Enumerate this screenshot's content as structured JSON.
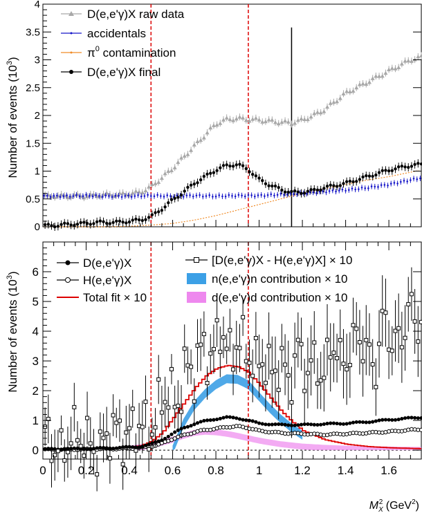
{
  "chart_data": [
    {
      "type": "scatter",
      "ylabel": "Number of events (10",
      "ylabel_exp": "3",
      "ylabel_close": ")",
      "ylim": [
        0,
        4
      ],
      "xlim": [
        0,
        1.75
      ],
      "yticks": [
        "0",
        "0.5",
        "1",
        "1.5",
        "2",
        "2.5",
        "3",
        "3.5",
        "4"
      ],
      "ytick_values": [
        0,
        0.5,
        1,
        1.5,
        2,
        2.5,
        3,
        3.5,
        4
      ],
      "vertical_lines": [
        {
          "x": 0.5,
          "style": "dashed",
          "color": "#dd0000"
        },
        {
          "x": 0.95,
          "style": "dashed",
          "color": "#dd0000"
        },
        {
          "x": 1.15,
          "style": "solid",
          "color": "#000000"
        }
      ],
      "legend": [
        {
          "label": "D(e,e'γ)X raw data",
          "color": "#a8a8a8",
          "marker": "triangle"
        },
        {
          "label": "accidentals",
          "color": "#1515c8",
          "marker": "dot"
        },
        {
          "label": "π",
          "sup": "0",
          "label_rest": " contamination",
          "color": "#f08c28",
          "marker": "dot"
        },
        {
          "label": "D(e,e'γ)X final",
          "color": "#000000",
          "marker": "circle"
        }
      ],
      "series": [
        {
          "name": "D(e,e'γ)X raw data",
          "color": "#a8a8a8",
          "x": [
            0.0,
            0.05,
            0.1,
            0.15,
            0.2,
            0.25,
            0.3,
            0.35,
            0.4,
            0.45,
            0.5,
            0.55,
            0.6,
            0.65,
            0.7,
            0.75,
            0.8,
            0.85,
            0.9,
            0.95,
            1.0,
            1.05,
            1.1,
            1.15,
            1.2,
            1.25,
            1.3,
            1.35,
            1.4,
            1.45,
            1.5,
            1.55,
            1.6,
            1.65,
            1.7,
            1.75
          ],
          "y": [
            0.55,
            0.56,
            0.55,
            0.56,
            0.55,
            0.57,
            0.58,
            0.58,
            0.6,
            0.62,
            0.72,
            0.88,
            1.05,
            1.25,
            1.45,
            1.65,
            1.85,
            1.93,
            1.95,
            1.93,
            1.92,
            1.9,
            1.88,
            1.87,
            1.92,
            2.0,
            2.1,
            2.25,
            2.4,
            2.5,
            2.6,
            2.7,
            2.8,
            2.9,
            3.0,
            3.05
          ]
        },
        {
          "name": "accidentals",
          "color": "#1515c8",
          "x": [
            0.0,
            0.1,
            0.2,
            0.3,
            0.4,
            0.5,
            0.6,
            0.7,
            0.8,
            0.9,
            1.0,
            1.1,
            1.2,
            1.3,
            1.4,
            1.5,
            1.6,
            1.7,
            1.75
          ],
          "y": [
            0.55,
            0.55,
            0.56,
            0.55,
            0.55,
            0.56,
            0.55,
            0.56,
            0.55,
            0.56,
            0.56,
            0.58,
            0.6,
            0.63,
            0.66,
            0.7,
            0.76,
            0.84,
            0.88
          ]
        },
        {
          "name": "π⁰ contamination",
          "color": "#f08c28",
          "x": [
            0.0,
            0.3,
            0.4,
            0.5,
            0.6,
            0.7,
            0.8,
            0.9,
            1.0,
            1.1,
            1.2,
            1.3,
            1.4,
            1.5,
            1.6,
            1.7,
            1.75
          ],
          "y": [
            0.0,
            0.0,
            0.01,
            0.03,
            0.06,
            0.12,
            0.2,
            0.3,
            0.4,
            0.5,
            0.6,
            0.68,
            0.76,
            0.84,
            0.9,
            0.98,
            1.02
          ]
        },
        {
          "name": "D(e,e'γ)X final",
          "color": "#000000",
          "x": [
            0.0,
            0.05,
            0.1,
            0.15,
            0.2,
            0.25,
            0.3,
            0.35,
            0.4,
            0.45,
            0.5,
            0.55,
            0.6,
            0.65,
            0.7,
            0.75,
            0.8,
            0.85,
            0.9,
            0.95,
            1.0,
            1.05,
            1.1,
            1.15,
            1.2,
            1.25,
            1.3,
            1.35,
            1.4,
            1.45,
            1.5,
            1.55,
            1.6,
            1.65,
            1.7,
            1.75
          ],
          "y": [
            0.02,
            0.02,
            0.04,
            0.05,
            0.06,
            0.08,
            0.08,
            0.08,
            0.1,
            0.12,
            0.18,
            0.32,
            0.48,
            0.62,
            0.78,
            0.9,
            1.02,
            1.1,
            1.12,
            1.03,
            0.85,
            0.75,
            0.67,
            0.62,
            0.62,
            0.65,
            0.7,
            0.74,
            0.78,
            0.84,
            0.9,
            0.96,
            1.02,
            1.06,
            1.1,
            1.12
          ]
        }
      ]
    },
    {
      "type": "scatter",
      "ylabel": "Number of events (10",
      "ylabel_exp": "3",
      "ylabel_close": ")",
      "xlabel": "M",
      "xlabel_sub": "X",
      "xlabel_sup": "2",
      "xlabel_unit": " (GeV",
      "xlabel_unit_sup": "2",
      "xlabel_close": ")",
      "ylim": [
        -0.3,
        7.0
      ],
      "xlim": [
        0,
        1.75
      ],
      "xticks": [
        "0",
        "0.2",
        "0.4",
        "0.6",
        "0.8",
        "1",
        "1.2",
        "1.4",
        "1.6"
      ],
      "xtick_values": [
        0,
        0.2,
        0.4,
        0.6,
        0.8,
        1.0,
        1.2,
        1.4,
        1.6
      ],
      "yticks": [
        "0",
        "1",
        "2",
        "3",
        "4",
        "5",
        "6"
      ],
      "ytick_values": [
        0,
        1,
        2,
        3,
        4,
        5,
        6
      ],
      "vertical_lines": [
        {
          "x": 0.5,
          "style": "dashed",
          "color": "#dd0000"
        },
        {
          "x": 0.95,
          "style": "dashed",
          "color": "#dd0000"
        }
      ],
      "legend": [
        {
          "label": "D(e,e'γ)X",
          "color": "#000000",
          "marker": "filled-circle"
        },
        {
          "label": "H(e,e'γ)X",
          "color": "#000000",
          "marker": "open-circle"
        },
        {
          "label": "Total fit × 10",
          "color": "#dd0000",
          "marker": "line"
        },
        {
          "label": "[D(e,e'γ)X - H(e,e'γ)X] × 10",
          "color": "#000000",
          "marker": "open-square"
        },
        {
          "label": "n(e,e'γ)n contribution × 10",
          "color": "#3ca0e6",
          "marker": "band"
        },
        {
          "label": "d(e,e'γ)d contribution × 10",
          "color": "#ee88ee",
          "marker": "band"
        }
      ],
      "series": [
        {
          "name": "D(e,e'γ)X",
          "color": "#000000",
          "x": [
            0.0,
            0.1,
            0.2,
            0.3,
            0.4,
            0.45,
            0.5,
            0.55,
            0.6,
            0.65,
            0.7,
            0.75,
            0.8,
            0.85,
            0.9,
            0.95,
            1.0,
            1.1,
            1.2,
            1.3,
            1.4,
            1.5,
            1.6,
            1.7,
            1.75
          ],
          "y": [
            0.03,
            0.04,
            0.05,
            0.07,
            0.1,
            0.12,
            0.2,
            0.35,
            0.55,
            0.75,
            0.88,
            0.98,
            1.05,
            1.1,
            1.08,
            1.0,
            0.9,
            0.85,
            0.85,
            0.88,
            0.9,
            0.95,
            1.02,
            1.08,
            1.1
          ]
        },
        {
          "name": "H(e,e'γ)X",
          "color": "#000000",
          "x": [
            0.0,
            0.1,
            0.2,
            0.3,
            0.4,
            0.45,
            0.5,
            0.55,
            0.6,
            0.65,
            0.7,
            0.75,
            0.8,
            0.85,
            0.9,
            0.95,
            1.0,
            1.1,
            1.2,
            1.3,
            1.4,
            1.5,
            1.6,
            1.7,
            1.75
          ],
          "y": [
            0.02,
            0.02,
            0.03,
            0.04,
            0.06,
            0.08,
            0.12,
            0.22,
            0.38,
            0.5,
            0.6,
            0.68,
            0.72,
            0.78,
            0.8,
            0.75,
            0.65,
            0.58,
            0.55,
            0.52,
            0.55,
            0.58,
            0.62,
            0.68,
            0.7
          ]
        },
        {
          "name": "[D(e,e'γ)X - H(e,e'γ)X] × 10",
          "color": "#000000",
          "x": [
            0.02,
            0.08,
            0.14,
            0.2,
            0.26,
            0.32,
            0.38,
            0.44,
            0.5,
            0.54,
            0.58,
            0.62,
            0.66,
            0.7,
            0.74,
            0.78,
            0.82,
            0.86,
            0.9,
            0.94,
            0.98,
            1.02,
            1.06,
            1.1,
            1.14,
            1.18,
            1.22,
            1.26,
            1.3,
            1.34,
            1.38,
            1.42,
            1.46,
            1.5,
            1.54,
            1.58,
            1.62,
            1.66,
            1.7,
            1.74
          ],
          "y": [
            0.5,
            -0.2,
            0.6,
            0.3,
            -0.1,
            0.8,
            0.4,
            0.9,
            0.6,
            1.5,
            2.0,
            1.4,
            2.8,
            2.6,
            3.6,
            2.9,
            4.2,
            3.1,
            3.7,
            3.4,
            2.8,
            3.1,
            2.5,
            3.0,
            2.2,
            3.4,
            2.6,
            3.0,
            2.4,
            3.8,
            2.8,
            3.3,
            4.0,
            3.2,
            2.8,
            4.6,
            3.4,
            3.9,
            4.8,
            4.2
          ]
        },
        {
          "name": "Total fit × 10",
          "color": "#dd0000",
          "x": [
            0.0,
            0.1,
            0.2,
            0.3,
            0.4,
            0.45,
            0.5,
            0.55,
            0.6,
            0.65,
            0.7,
            0.75,
            0.8,
            0.85,
            0.9,
            0.95,
            1.0,
            1.05,
            1.1,
            1.15,
            1.2,
            1.3,
            1.4,
            1.5,
            1.6,
            1.7,
            1.75
          ],
          "y": [
            0.02,
            0.03,
            0.04,
            0.06,
            0.1,
            0.15,
            0.3,
            0.6,
            1.1,
            1.6,
            2.1,
            2.5,
            2.75,
            2.85,
            2.8,
            2.6,
            2.2,
            1.75,
            1.3,
            0.95,
            0.65,
            0.35,
            0.2,
            0.12,
            0.08,
            0.06,
            0.05
          ]
        },
        {
          "name": "n(e,e'γ)n contribution × 10",
          "color": "#3ca0e6",
          "x": [
            0.6,
            0.65,
            0.7,
            0.75,
            0.8,
            0.85,
            0.9,
            0.95,
            1.0,
            1.05,
            1.1,
            1.15,
            1.2
          ],
          "y": [
            0.0,
            0.9,
            1.5,
            1.9,
            2.2,
            2.4,
            2.38,
            2.2,
            1.8,
            1.4,
            1.05,
            0.75,
            0.5
          ]
        },
        {
          "name": "d(e,e'γ)d contribution × 10",
          "color": "#ee88ee",
          "x": [
            0.4,
            0.5,
            0.6,
            0.65,
            0.7,
            0.75,
            0.8,
            0.85,
            0.9,
            0.95,
            1.0,
            1.1,
            1.2,
            1.3,
            1.4,
            1.5,
            1.6,
            1.7,
            1.75
          ],
          "y": [
            0.05,
            0.15,
            0.35,
            0.48,
            0.58,
            0.62,
            0.6,
            0.55,
            0.48,
            0.4,
            0.32,
            0.2,
            0.12,
            0.08,
            0.05,
            0.03,
            0.02,
            0.01,
            0.01
          ]
        }
      ]
    }
  ]
}
